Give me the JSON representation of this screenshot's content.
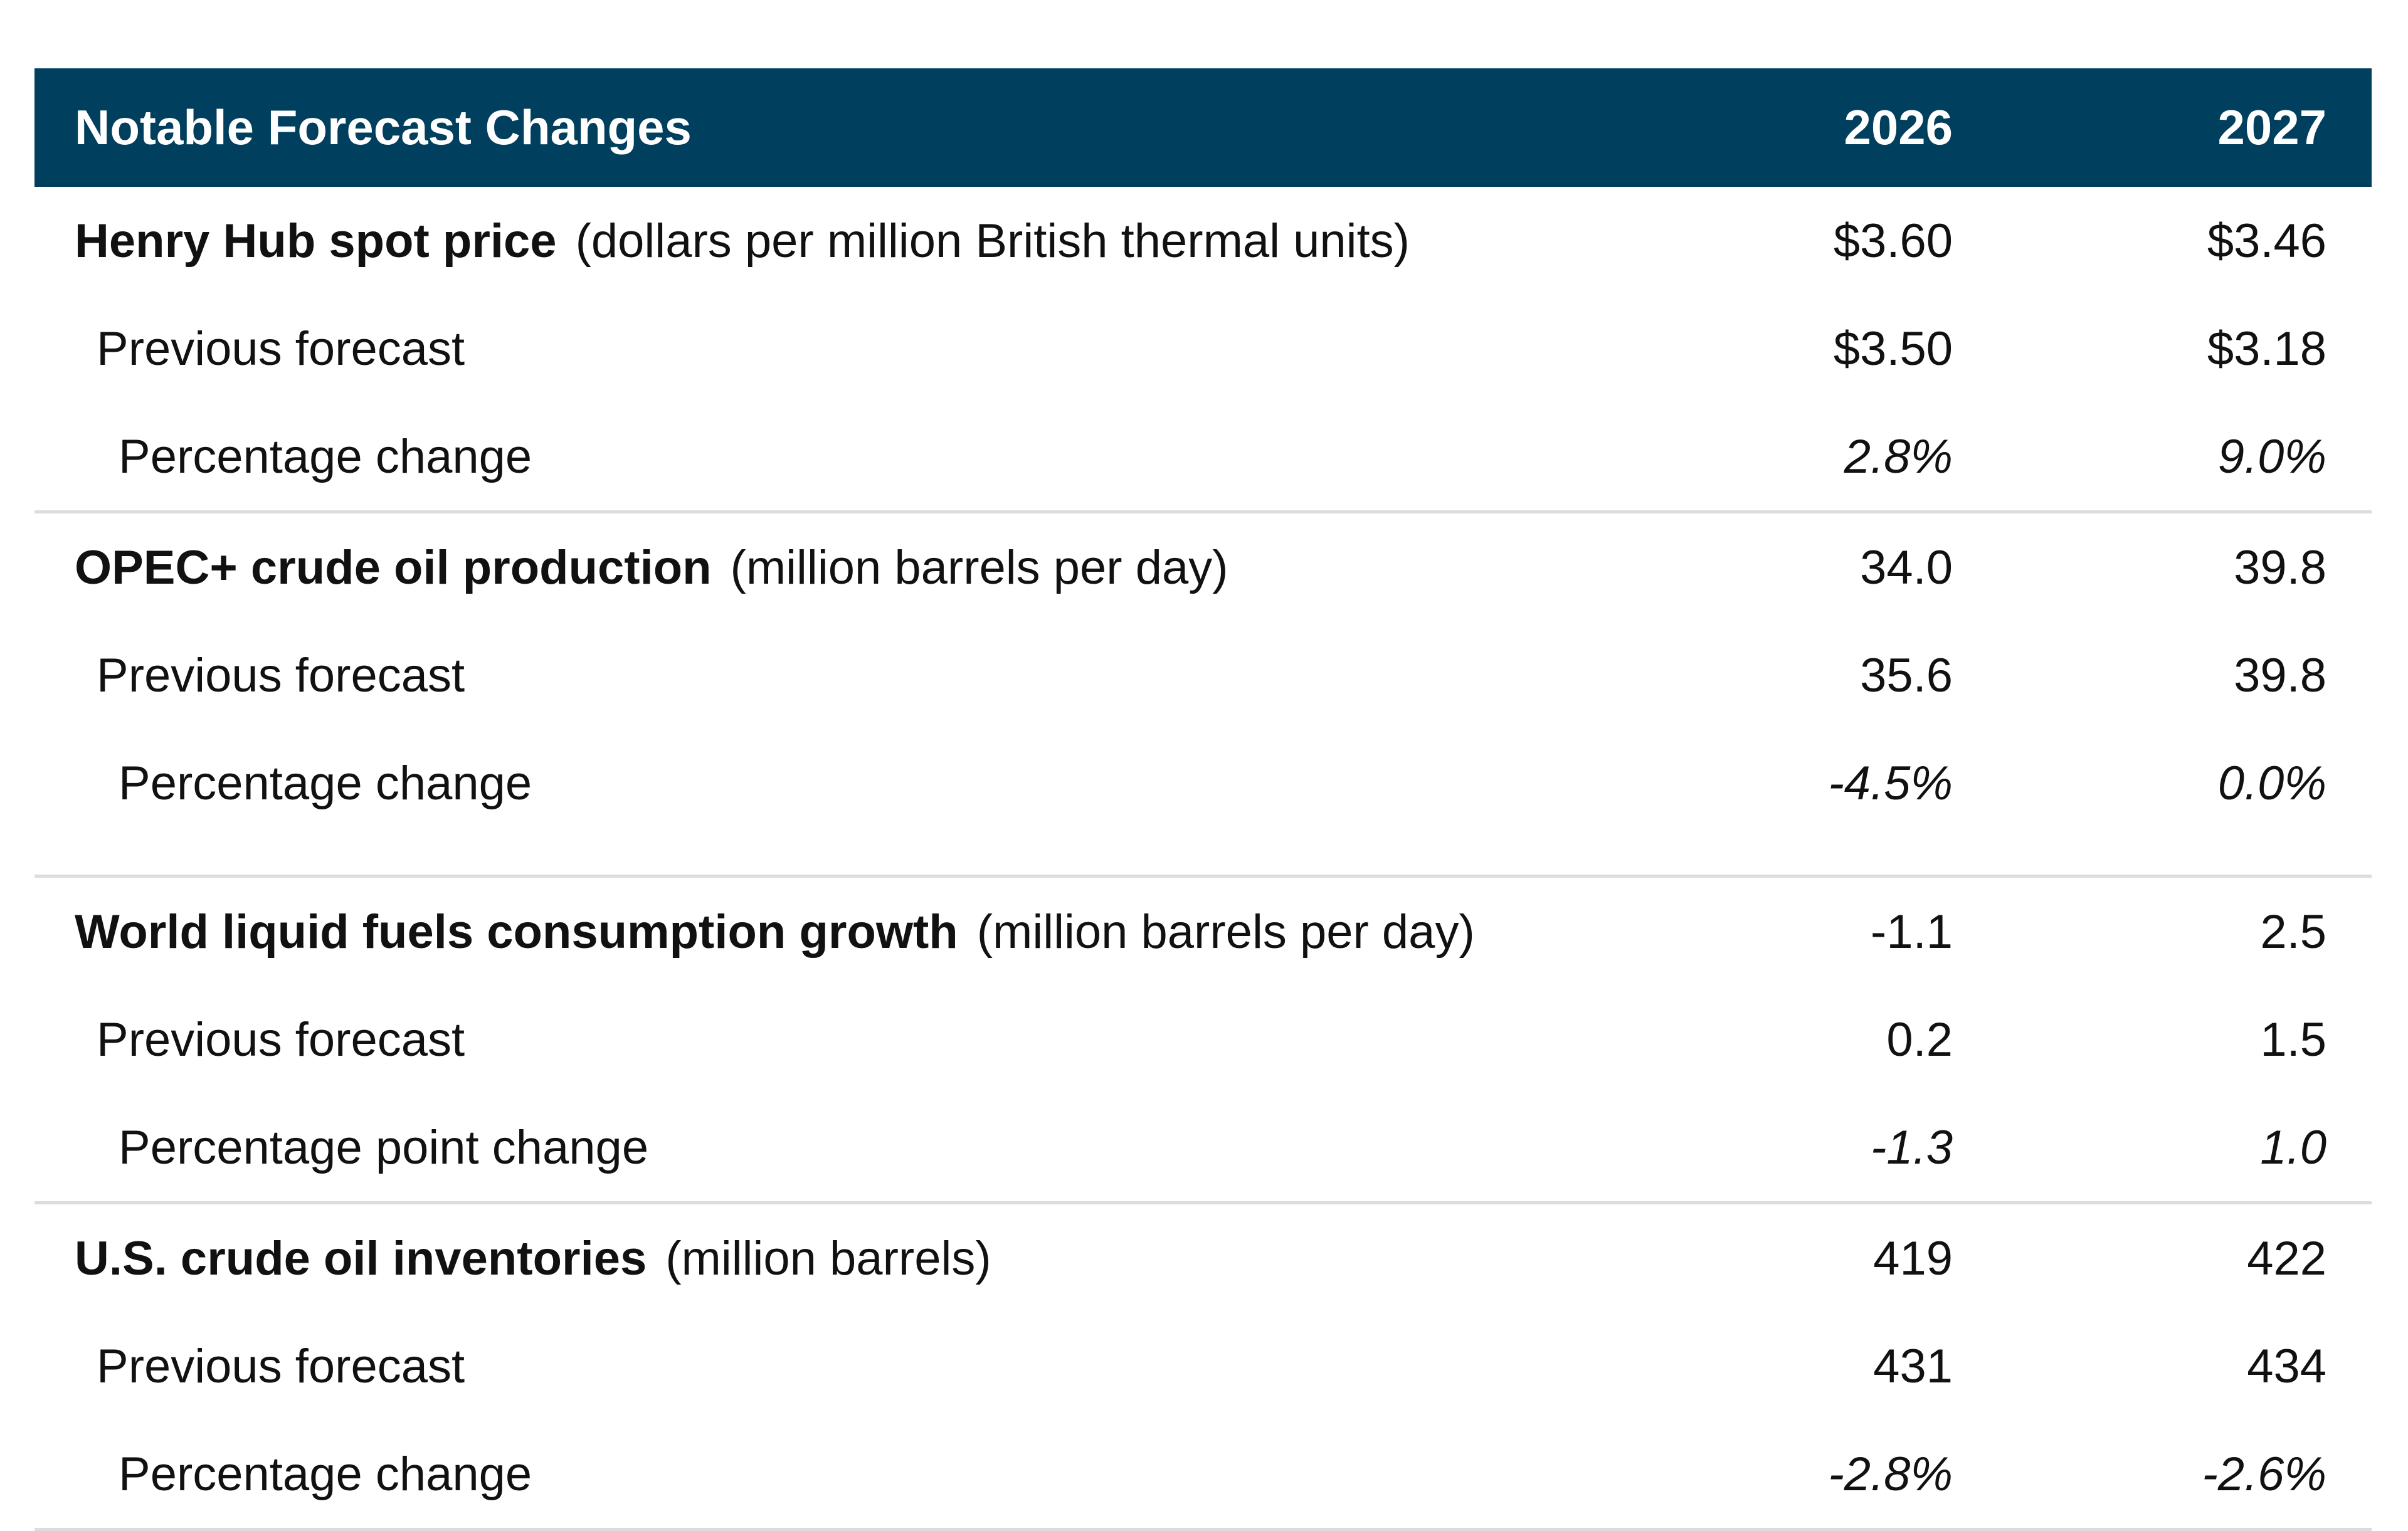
{
  "header": {
    "title": "Notable Forecast Changes",
    "columns": [
      "2026",
      "2027"
    ]
  },
  "groups": [
    {
      "name": "Henry Hub spot price",
      "unit": "(dollars per million British thermal units)",
      "values": [
        "$3.60",
        "$3.46"
      ],
      "rows": [
        {
          "label": "Previous forecast",
          "values": [
            "$3.50",
            "$3.18"
          ]
        },
        {
          "label": "Percentage change",
          "values": [
            "2.8%",
            "9.0%"
          ]
        }
      ]
    },
    {
      "name": "OPEC+ crude oil production",
      "unit": "(million barrels per day)",
      "values": [
        "34.0",
        "39.8"
      ],
      "rows": [
        {
          "label": "Previous forecast",
          "values": [
            "35.6",
            "39.8"
          ]
        },
        {
          "label": "Percentage change",
          "values": [
            "-4.5%",
            "0.0%"
          ]
        }
      ]
    },
    {
      "name": "World liquid fuels consumption growth",
      "unit": "(million barrels per day)",
      "values": [
        "-1.1",
        "2.5"
      ],
      "rows": [
        {
          "label": "Previous forecast",
          "values": [
            "0.2",
            "1.5"
          ]
        },
        {
          "label": "Percentage point change",
          "values": [
            "-1.3",
            "1.0"
          ]
        }
      ]
    },
    {
      "name": "U.S. crude oil inventories",
      "unit": "(million barrels)",
      "values": [
        "419",
        "422"
      ],
      "rows": [
        {
          "label": "Previous forecast",
          "values": [
            "431",
            "434"
          ]
        },
        {
          "label": "Percentage change",
          "values": [
            "-2.8%",
            "-2.6%"
          ]
        }
      ]
    }
  ]
}
